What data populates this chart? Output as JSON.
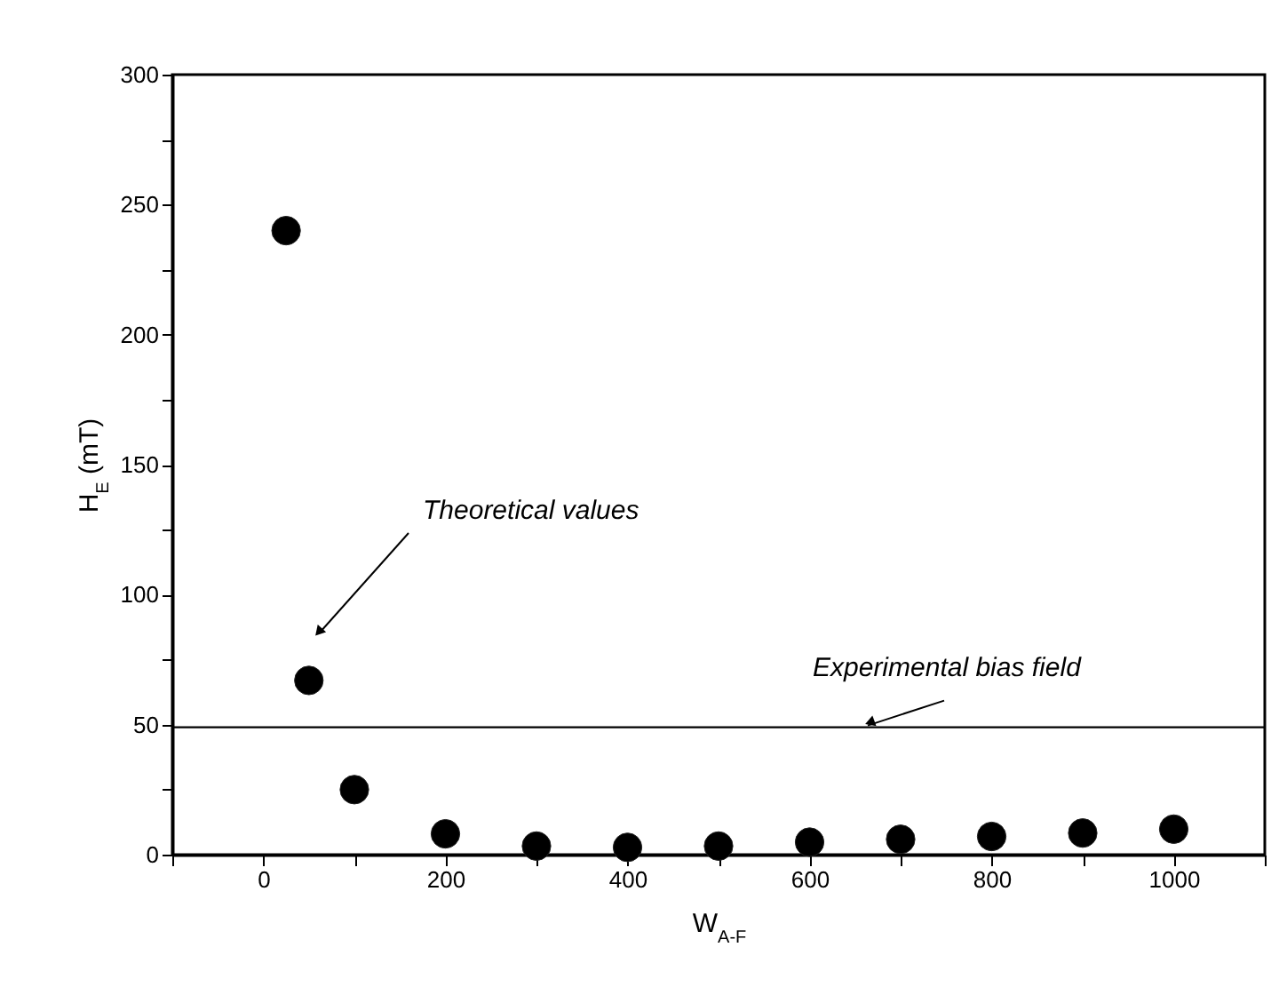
{
  "chart_data": {
    "type": "scatter",
    "xlabel": "W$_{A-F}$",
    "ylabel": "H$_{E}$ (mT)",
    "x": [
      25,
      50,
      100,
      200,
      300,
      400,
      500,
      600,
      700,
      800,
      900,
      1000
    ],
    "series": [
      {
        "color": "#000000",
        "values": [
          240,
          67,
          25,
          8,
          3.3,
          2.8,
          3.3,
          4.8,
          5.9,
          7,
          8.3,
          9.8
        ]
      }
    ],
    "marker": "circle",
    "grid": false,
    "legend": false,
    "xlim": [
      -100,
      1100
    ],
    "xticks": [
      {
        "value": -100,
        "label": null
      },
      0,
      {
        "value": 100,
        "label": null
      },
      200,
      {
        "value": 300,
        "label": null
      },
      400,
      {
        "value": 500,
        "label": null
      },
      600,
      {
        "value": 700,
        "label": null
      },
      800,
      {
        "value": 900,
        "label": null
      },
      1000,
      {
        "value": 1100,
        "label": null
      }
    ],
    "ylim": [
      0,
      300
    ],
    "yticks": [
      0,
      {
        "value": 25,
        "label": null
      },
      50,
      {
        "value": 75,
        "label": null
      },
      100,
      {
        "value": 125,
        "label": null
      },
      150,
      {
        "value": 175,
        "label": null
      },
      200,
      {
        "value": 225,
        "label": null
      },
      250,
      {
        "value": 275,
        "label": null
      },
      300
    ],
    "ref_lines": [
      {
        "axis": "y",
        "value": 49,
        "color": "#000000",
        "line_style": "solid"
      }
    ],
    "annotations": [
      "Theoretical values",
      {
        "text": "Experimental bias field",
        "x": 660,
        "y": 49
      }
    ]
  }
}
